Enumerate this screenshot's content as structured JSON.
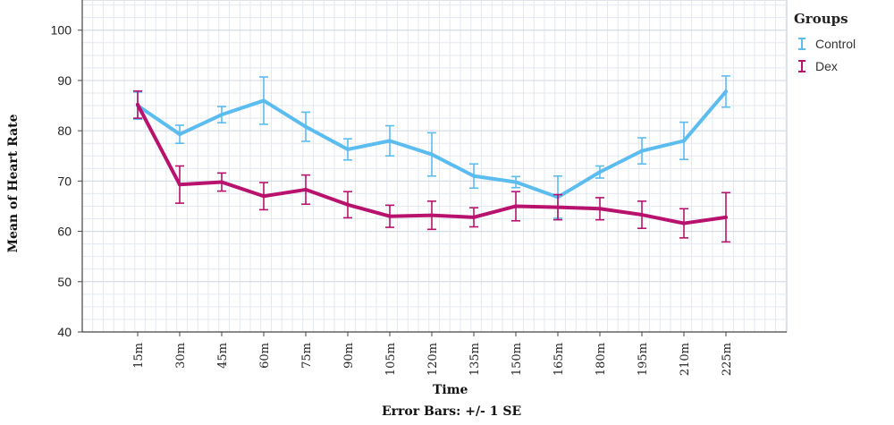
{
  "chart_data": {
    "type": "line",
    "xlabel": "Time",
    "ylabel": "Mean of Heart Rate",
    "footnote": "Error Bars: +/- 1 SE",
    "categories": [
      "15m",
      "30m",
      "45m",
      "60m",
      "75m",
      "90m",
      "105m",
      "120m",
      "135m",
      "150m",
      "165m",
      "180m",
      "195m",
      "210m",
      "225m"
    ],
    "ylim": [
      40,
      106
    ],
    "yticks": [
      40,
      50,
      60,
      70,
      80,
      90,
      100
    ],
    "grid": true,
    "legend": {
      "title": "Groups",
      "placement": "right"
    },
    "series": [
      {
        "name": "Control",
        "color": "#5bbcf0",
        "values": [
          85,
          79.3,
          83.2,
          86,
          80.8,
          76.3,
          78,
          75.3,
          71,
          69.8,
          66.8,
          71.8,
          76,
          78,
          87.8
        ],
        "error": [
          2.7,
          1.8,
          1.6,
          4.7,
          2.9,
          2.1,
          3,
          4.3,
          2.4,
          1.1,
          4.2,
          1.2,
          2.6,
          3.7,
          3.1
        ]
      },
      {
        "name": "Dex",
        "color": "#b8126e",
        "values": [
          85.2,
          69.3,
          69.8,
          67,
          68.3,
          65.3,
          63,
          63.2,
          62.8,
          65,
          64.8,
          64.5,
          63.3,
          61.6,
          62.8
        ],
        "error": [
          2.7,
          3.7,
          1.8,
          2.7,
          2.9,
          2.6,
          2.2,
          2.8,
          1.9,
          2.9,
          2.5,
          2.2,
          2.7,
          2.9,
          4.9
        ]
      }
    ]
  }
}
